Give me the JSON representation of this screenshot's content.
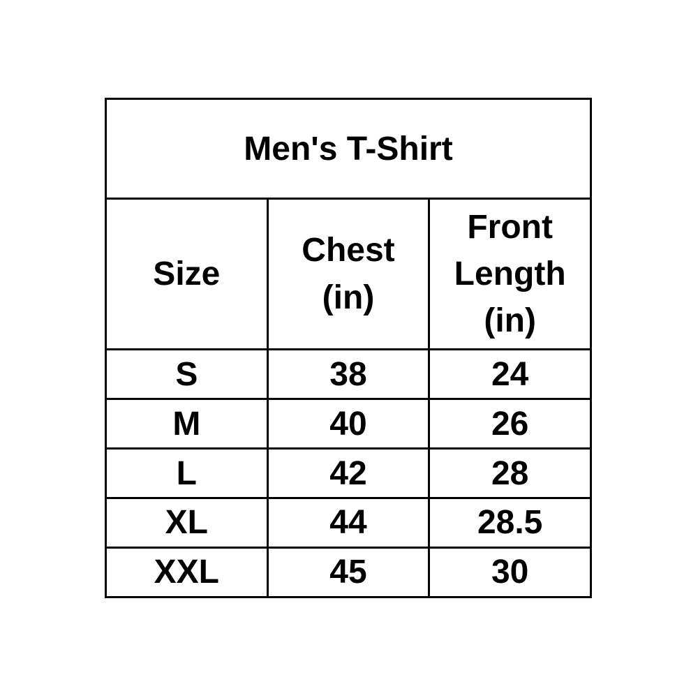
{
  "colors": {
    "background": "#ffffff",
    "table_border": "#000000",
    "text": "#000000"
  },
  "table": {
    "title": "Men's T-Shirt",
    "headers": [
      "Size",
      "Chest\n(in)",
      "Front\nLength\n(in)"
    ],
    "rows": [
      [
        "S",
        "38",
        "24"
      ],
      [
        "M",
        "40",
        "26"
      ],
      [
        "L",
        "42",
        "28"
      ],
      [
        "XL",
        "44",
        "28.5"
      ],
      [
        "XXL",
        "45",
        "30"
      ]
    ]
  },
  "chart_data": {
    "type": "table",
    "title": "Men's T-Shirt",
    "columns": [
      "Size",
      "Chest (in)",
      "Front Length (in)"
    ],
    "rows": [
      [
        "S",
        38,
        24
      ],
      [
        "M",
        40,
        26
      ],
      [
        "L",
        42,
        28
      ],
      [
        "XL",
        44,
        28.5
      ],
      [
        "XXL",
        45,
        30
      ]
    ]
  }
}
